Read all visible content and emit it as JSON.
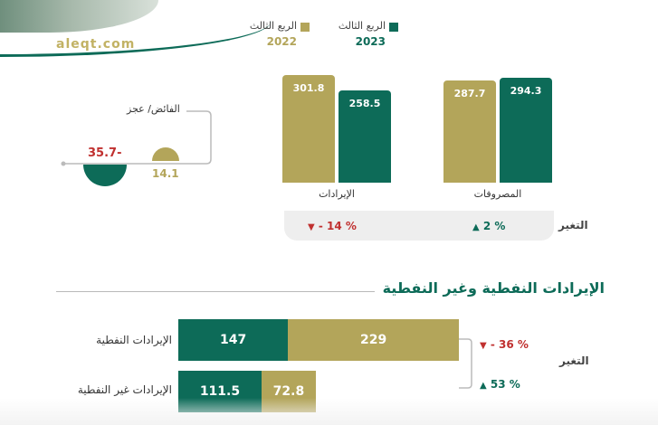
{
  "brand": "aleqt.com",
  "legend": [
    {
      "name": "الربع الثالث",
      "year": "2023",
      "color": "#0d6b58"
    },
    {
      "name": "الربع الثالث",
      "year": "2022",
      "color": "#b3a55a"
    }
  ],
  "change_label": "التغير",
  "balance": {
    "title": "الفائض/ عجز",
    "value_2023": "35.7-",
    "value_2022": "14.1"
  },
  "change_top": {
    "revenues": "- 14 %",
    "expenditures": "2 %"
  },
  "section": {
    "title": "الإيرادات النفطية وغير النفطية",
    "change_label": "التغير"
  },
  "oil_changes": {
    "oil": "- 36 %",
    "non_oil": "53 %"
  },
  "chart_data": [
    {
      "type": "bar",
      "categories": [
        "الإيرادات",
        "المصروفات"
      ],
      "series": [
        {
          "name": "الربع الثالث 2023",
          "values": [
            258.5,
            294.3
          ]
        },
        {
          "name": "الربع الثالث 2022",
          "values": [
            301.8,
            287.7
          ]
        }
      ],
      "value_labels_2023": [
        "258.5",
        "294.3"
      ],
      "value_labels_2022": [
        "301.8",
        "287.7"
      ]
    },
    {
      "type": "bar",
      "orientation": "horizontal-stacked",
      "categories": [
        "الإيرادات النفطية",
        "الإيرادات غير النفطية"
      ],
      "series": [
        {
          "name": "الربع الثالث 2023",
          "values": [
            147,
            111.5
          ]
        },
        {
          "name": "الربع الثالث 2022",
          "values": [
            229,
            72.8
          ]
        }
      ],
      "value_labels_2023": [
        "147",
        "111.5"
      ],
      "value_labels_2022": [
        "229",
        "72.8"
      ]
    }
  ]
}
